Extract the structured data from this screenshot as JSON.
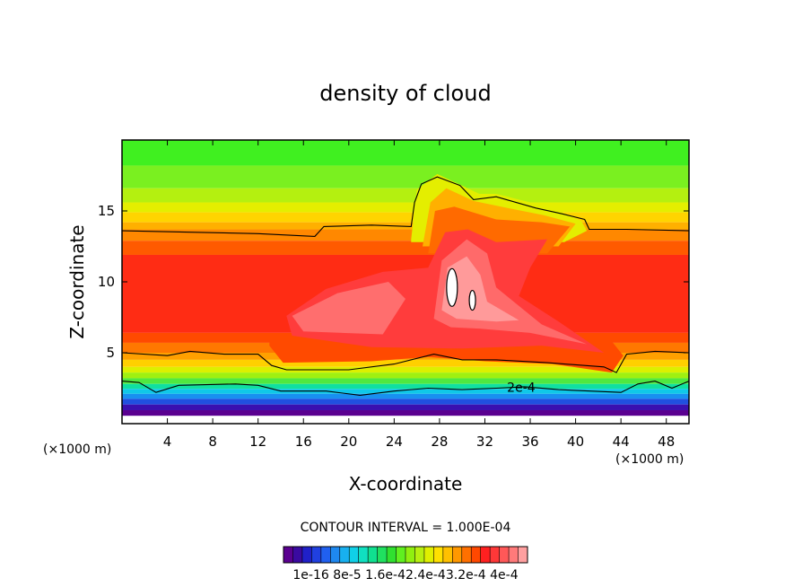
{
  "chart_data": {
    "type": "heatmap",
    "title": "density of cloud",
    "xlabel": "X-coordinate",
    "ylabel": "Z-coordinate",
    "x_unit_left": "(×1000 m)",
    "x_unit_right": "(×1000 m)",
    "xlim": [
      0,
      50
    ],
    "ylim": [
      0,
      20
    ],
    "x_ticks": [
      4,
      8,
      12,
      16,
      20,
      24,
      28,
      32,
      36,
      40,
      44,
      48
    ],
    "x_tick_labels": [
      "4",
      "8",
      "12",
      "16",
      "20",
      "24",
      "28",
      "32",
      "36",
      "40",
      "44",
      "48"
    ],
    "y_ticks": [
      5,
      10,
      15
    ],
    "y_tick_labels": [
      "5",
      "10",
      "15"
    ],
    "contour_interval_label": "CONTOUR INTERVAL = 1.000E-04",
    "contour_line_label": "2e-4",
    "colorbar": {
      "colors": [
        "#5a0090",
        "#3a0aa0",
        "#2020c8",
        "#2040e0",
        "#2060f0",
        "#1e88f0",
        "#18b0f0",
        "#10d0e8",
        "#10e0c0",
        "#10e090",
        "#20e060",
        "#30e030",
        "#60f020",
        "#90f010",
        "#b8f010",
        "#e0f000",
        "#ffe000",
        "#ffc000",
        "#ff9800",
        "#ff7000",
        "#ff4800",
        "#ff2020",
        "#ff3838",
        "#ff5858",
        "#ff7a7a",
        "#ffa0a0"
      ],
      "tick_labels": [
        "1e-16",
        "8e-5",
        "1.6e-4",
        "2.4e-4",
        "3.2e-4",
        "4e-4"
      ],
      "tick_label_text": "1e-16 8e-5 1.6e-42.4e-43.2e-4 4e-4"
    }
  }
}
